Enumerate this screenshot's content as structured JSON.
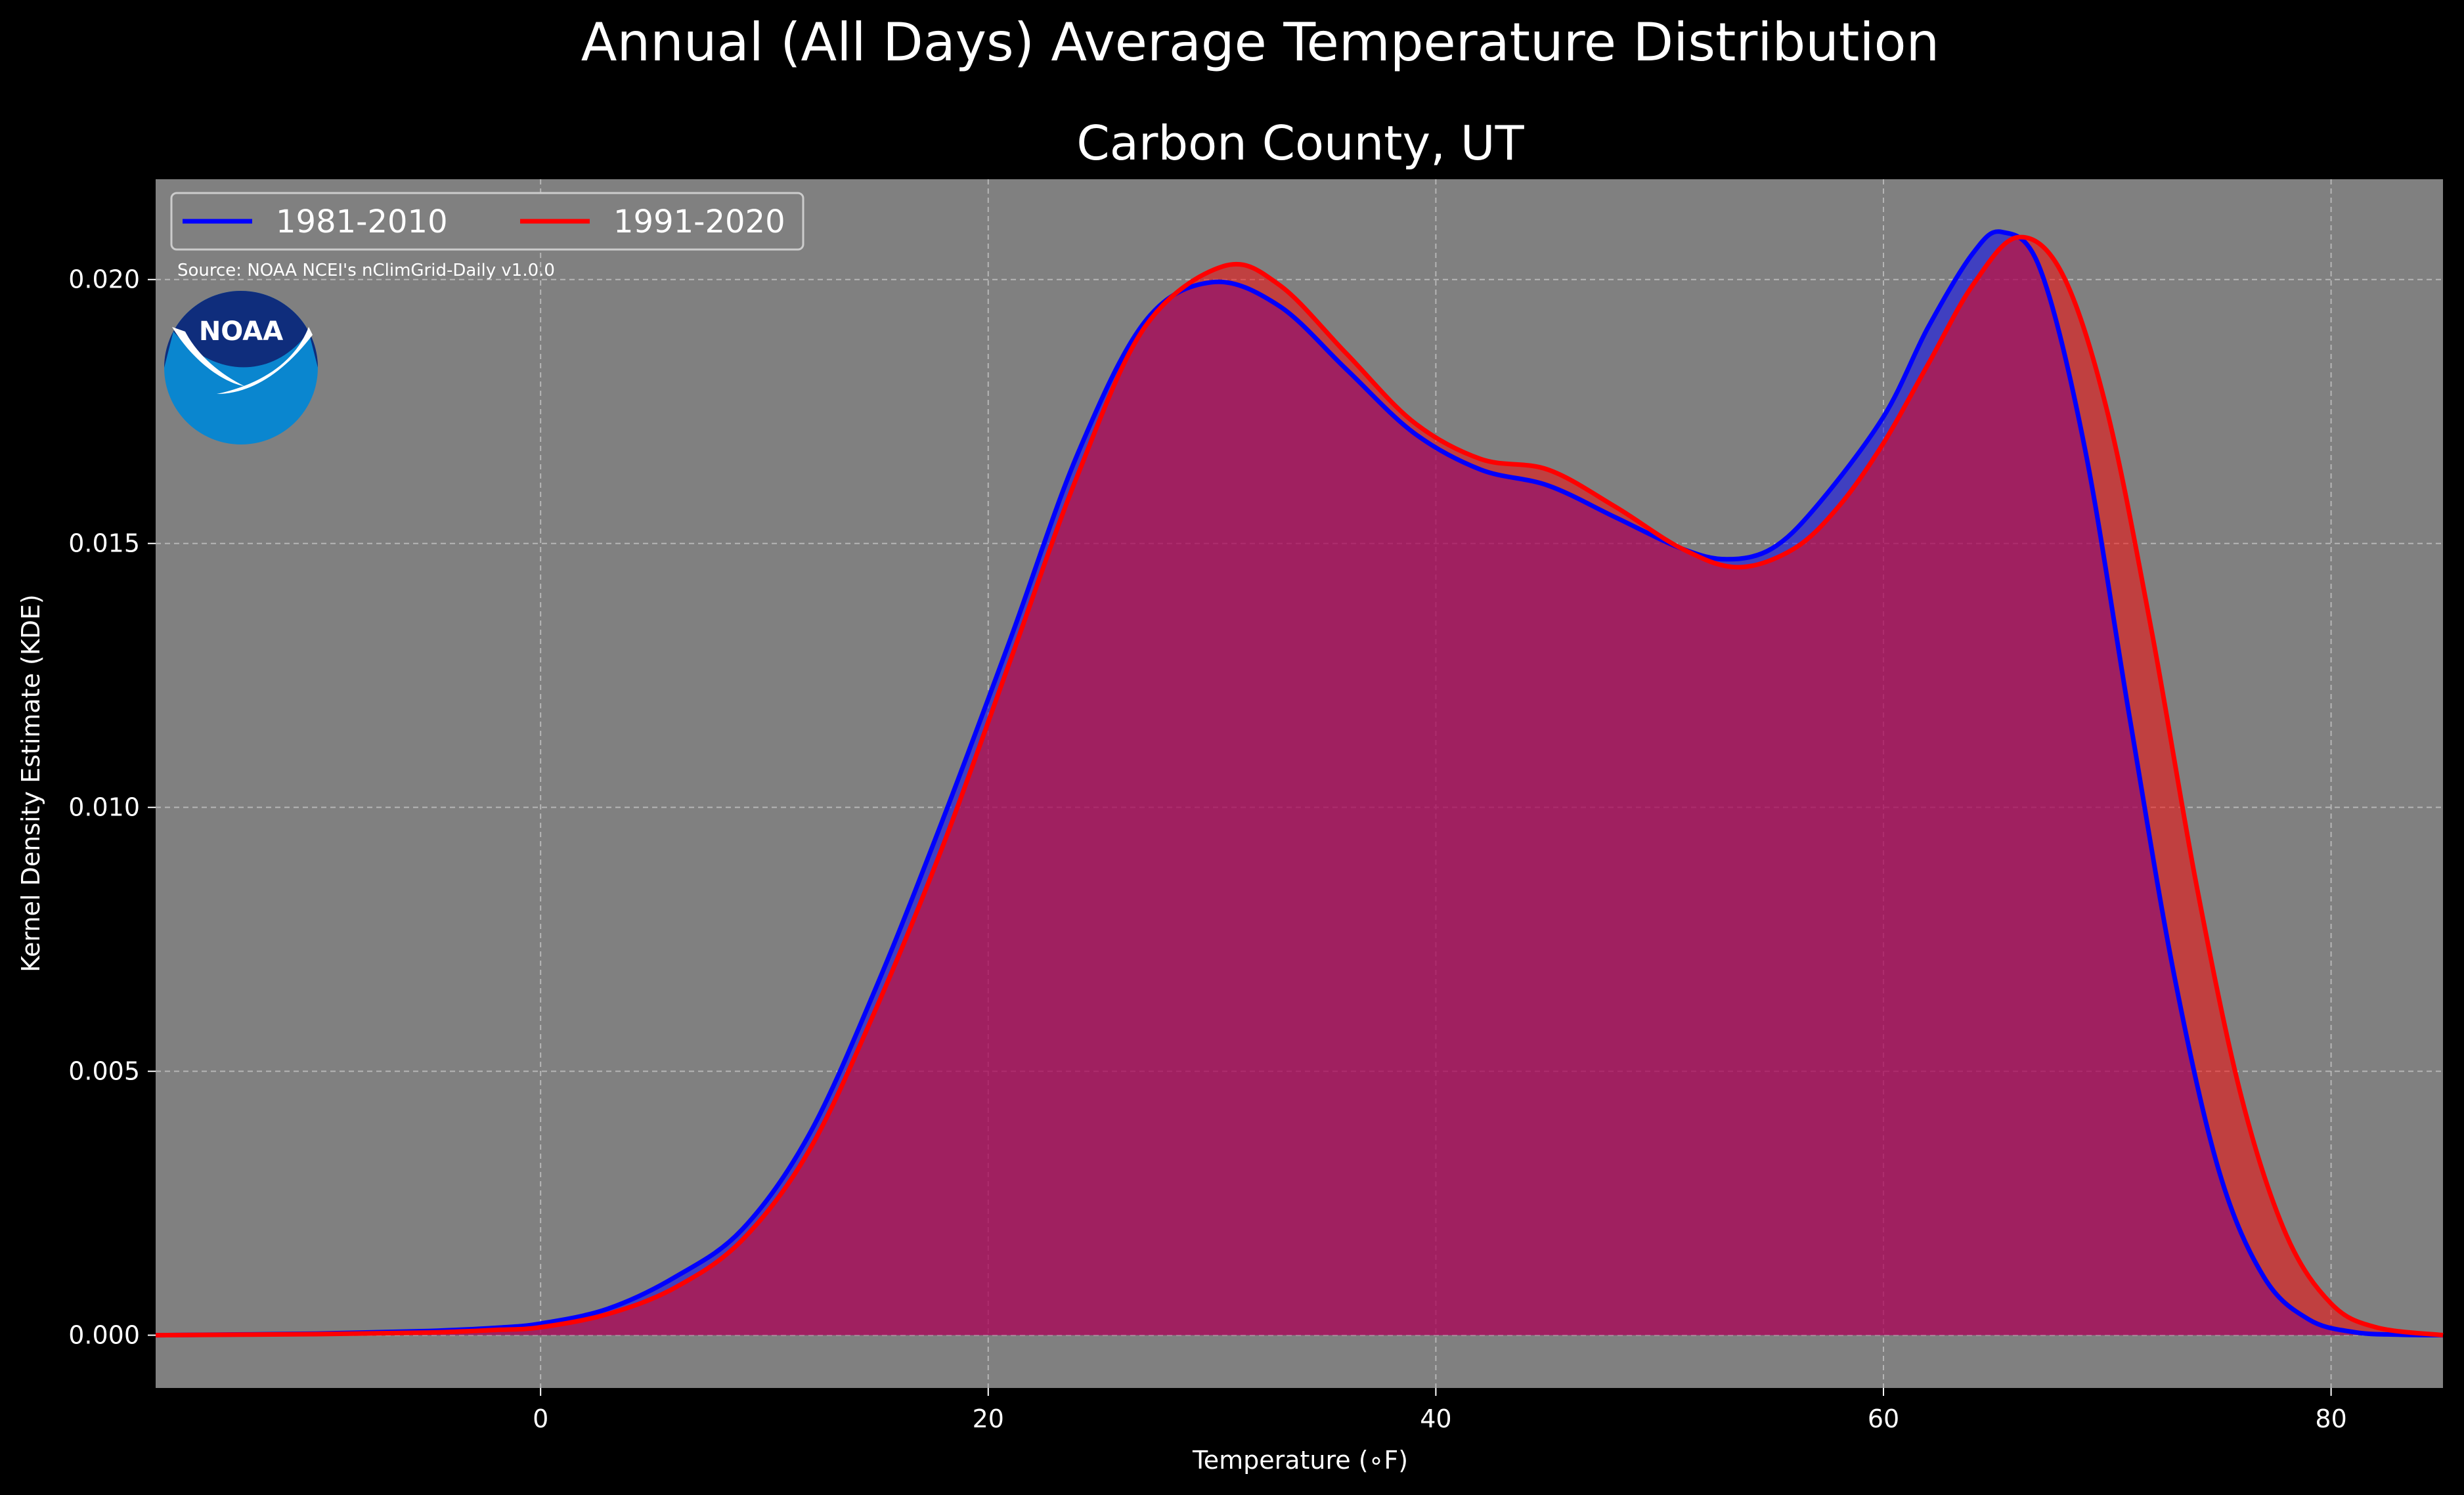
{
  "chart_data": {
    "type": "area",
    "suptitle": "Annual (All Days) Average Temperature Distribution",
    "title": "Carbon County, UT",
    "xlabel": "Temperature (∘F)",
    "ylabel": "Kernel Density Estimate (KDE)",
    "xlim": [
      -17.2,
      85
    ],
    "ylim": [
      -0.001,
      0.0219
    ],
    "xticks": [
      0,
      20,
      40,
      60,
      80
    ],
    "xtick_labels": [
      "0",
      "20",
      "40",
      "60",
      "80"
    ],
    "yticks": [
      0.0,
      0.005,
      0.01,
      0.015,
      0.02
    ],
    "ytick_labels": [
      "0.000",
      "0.005",
      "0.010",
      "0.015",
      "0.020"
    ],
    "grid": true,
    "legend_position": "top-left",
    "source_note": "Source: NOAA NCEI's nClimGrid-Daily v1.0.0",
    "logo_text": "NOAA",
    "background_color": "#000000",
    "plot_background": "#808080",
    "series": [
      {
        "name": "1981-2010",
        "color": "#0000ff",
        "fill": "#0000ff",
        "x": [
          -17.2,
          -10,
          -5,
          -2,
          0,
          3,
          6,
          9,
          12,
          15,
          18,
          21,
          24,
          27,
          30,
          33,
          36,
          39,
          42,
          45,
          48,
          51,
          53,
          55,
          57,
          60,
          62,
          64,
          65.3,
          67,
          69,
          71,
          73,
          75,
          77,
          79,
          81,
          83,
          85
        ],
        "y": [
          0.0,
          3e-05,
          8e-05,
          0.00014,
          0.00022,
          0.0005,
          0.0011,
          0.002,
          0.0038,
          0.0066,
          0.0098,
          0.0132,
          0.0167,
          0.0192,
          0.01995,
          0.0195,
          0.0183,
          0.0171,
          0.0164,
          0.0161,
          0.0155,
          0.0149,
          0.0147,
          0.0149,
          0.0157,
          0.0174,
          0.0191,
          0.0205,
          0.0209,
          0.0202,
          0.0168,
          0.0117,
          0.0068,
          0.0031,
          0.0011,
          0.0003,
          6e-05,
          1e-05,
          0.0
        ]
      },
      {
        "name": "1991-2020",
        "color": "#ff0000",
        "fill": "#ff0000",
        "x": [
          -17.2,
          -10,
          -5,
          -2,
          0,
          3,
          6,
          9,
          12,
          15,
          18,
          21,
          24,
          27,
          30.5,
          33,
          36,
          39,
          42,
          45,
          48,
          51,
          53.5,
          56,
          58,
          60,
          62,
          64,
          66,
          68,
          70,
          72,
          74,
          76,
          78,
          80,
          82,
          85
        ],
        "y": [
          0.0,
          2e-05,
          5e-05,
          0.0001,
          0.00015,
          0.0004,
          0.0009,
          0.0018,
          0.0035,
          0.0062,
          0.0093,
          0.0128,
          0.0163,
          0.0191,
          0.02025,
          0.0199,
          0.0186,
          0.0173,
          0.0166,
          0.0164,
          0.0157,
          0.0149,
          0.01455,
          0.0149,
          0.0157,
          0.0169,
          0.0184,
          0.0199,
          0.0208,
          0.0201,
          0.0175,
          0.0133,
          0.0085,
          0.0045,
          0.0019,
          0.0006,
          0.00015,
          0.0
        ]
      }
    ]
  }
}
